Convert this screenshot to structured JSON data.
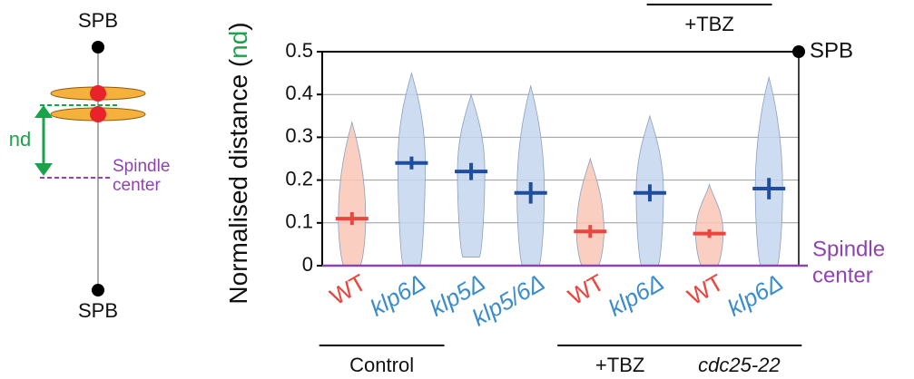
{
  "chart_data": {
    "type": "violin",
    "y_label_parts": [
      "Normalised distance (",
      "nd",
      ")"
    ],
    "categories": [
      "WT",
      "klp6Δ",
      "klp5Δ",
      "klp5/6Δ",
      "WT",
      "klp6Δ",
      "WT",
      "klp6Δ"
    ],
    "italic": [
      false,
      true,
      true,
      true,
      false,
      true,
      false,
      true
    ],
    "label_colors": [
      "#e8473f",
      "#3a8ccc",
      "#3a8ccc",
      "#3a8ccc",
      "#e8473f",
      "#3a8ccc",
      "#e8473f",
      "#3a8ccc"
    ],
    "fill_colors": [
      "#f9c6b6",
      "#c6d6ee",
      "#c6d6ee",
      "#c6d6ee",
      "#f9c6b6",
      "#c6d6ee",
      "#f9c6b6",
      "#c6d6ee"
    ],
    "mean_colors": [
      "#e8473f",
      "#1f4e9e",
      "#1f4e9e",
      "#1f4e9e",
      "#e8473f",
      "#1f4e9e",
      "#e8473f",
      "#1f4e9e"
    ],
    "mean": [
      0.11,
      0.24,
      0.22,
      0.17,
      0.08,
      0.17,
      0.075,
      0.18
    ],
    "sem": [
      0.015,
      0.015,
      0.02,
      0.025,
      0.015,
      0.02,
      0.01,
      0.025
    ],
    "min": [
      0,
      0,
      0.02,
      0,
      0,
      0,
      0,
      0
    ],
    "max": [
      0.335,
      0.45,
      0.4,
      0.42,
      0.25,
      0.35,
      0.19,
      0.44
    ],
    "ylim": [
      0,
      0.5
    ],
    "yticks": [
      0,
      0.1,
      0.2,
      0.3,
      0.4,
      0.5
    ],
    "grid": true,
    "top_marker": "SPB",
    "bottom_marker": [
      "Spindle",
      "center"
    ],
    "groups": [
      {
        "label": "Control",
        "from": 0,
        "to": 1
      },
      {
        "label": "+TBZ",
        "from": 4,
        "to": 5
      },
      {
        "label": "cdc25-22",
        "from": 6,
        "to": 7,
        "italic": true
      }
    ],
    "top_group": {
      "label": "+TBZ",
      "from": 5,
      "to": 7
    }
  },
  "diagram": {
    "top_spb": "SPB",
    "bottom_spb": "SPB",
    "nd": "nd",
    "center": [
      "Spindle",
      "center"
    ]
  }
}
